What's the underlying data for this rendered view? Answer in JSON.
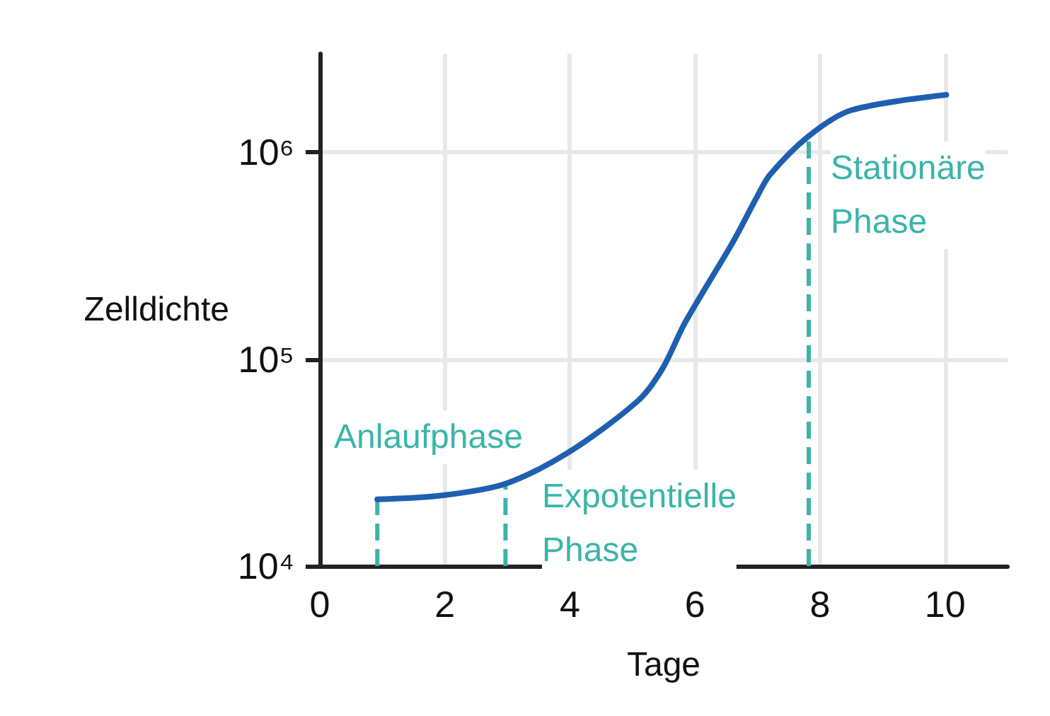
{
  "chart_data": {
    "type": "line",
    "xlabel": "Tage",
    "ylabel": "Zelldichte",
    "x": [
      0.92,
      1.98,
      2.97,
      3.95,
      5.09,
      5.48,
      5.84,
      6.61,
      6.98,
      7.2,
      7.82,
      8.5,
      10.02
    ],
    "series": [
      {
        "color": "#1f5fb0",
        "values": [
          21000,
          22000,
          25000,
          35000,
          63000,
          90000,
          150000,
          370000,
          600000,
          780000,
          1200000,
          1600000,
          1900000
        ]
      }
    ],
    "xlim": [
      0,
      11
    ],
    "xticks": [
      0,
      2,
      4,
      6,
      8,
      10
    ],
    "ylim": [
      10000,
      3000000
    ],
    "yticks": [
      {
        "value": 10000,
        "label": "10⁴"
      },
      {
        "value": 100000,
        "label": "10⁵"
      },
      {
        "value": 1000000,
        "label": "10⁶"
      }
    ],
    "log": "y",
    "grid": true,
    "marker": "none",
    "line_style": "solid",
    "ref_lines": [
      {
        "axis": "x",
        "value": 0.92,
        "color": "#3ab5a8",
        "line_style": "dashed"
      },
      {
        "axis": "x",
        "value": 2.97,
        "color": "#3ab5a8",
        "line_style": "dashed"
      },
      {
        "axis": "x",
        "value": 7.82,
        "color": "#3ab5a8",
        "line_style": "dashed"
      }
    ],
    "annotations": [
      "Anlaufphase",
      "Expotentielle Phase",
      "Stationäre Phase"
    ]
  }
}
